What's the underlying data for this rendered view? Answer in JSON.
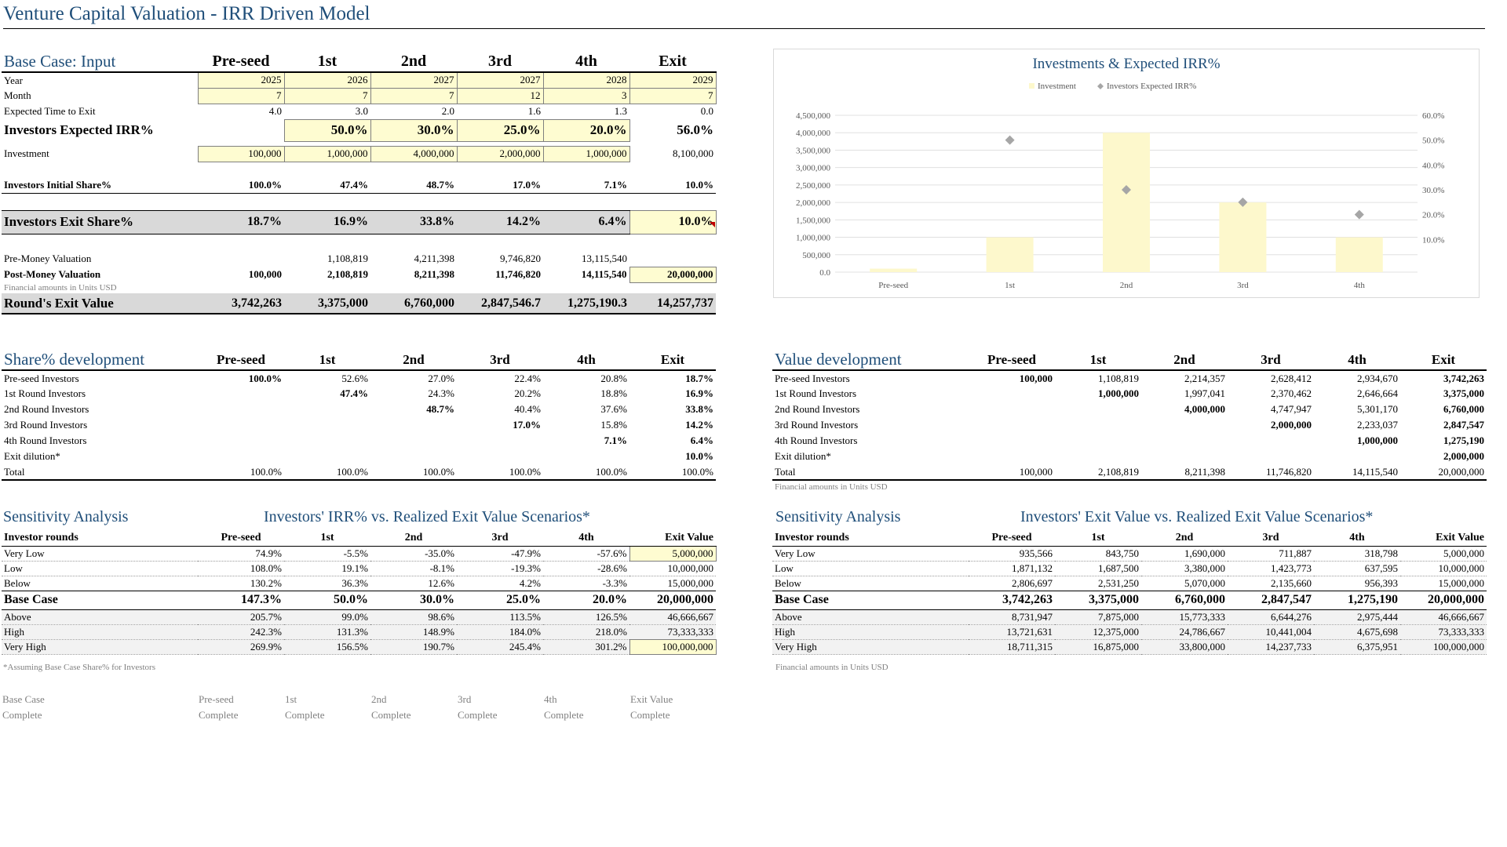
{
  "title": "Venture Capital Valuation - IRR Driven Model",
  "input": {
    "heading": "Base Case: Input",
    "columns": [
      "Pre-seed",
      "1st",
      "2nd",
      "3rd",
      "4th",
      "Exit"
    ],
    "year": {
      "label": "Year",
      "values": [
        "2025",
        "2026",
        "2027",
        "2027",
        "2028",
        "2029"
      ]
    },
    "month": {
      "label": "Month",
      "values": [
        "7",
        "7",
        "7",
        "12",
        "3",
        "7"
      ]
    },
    "time_to_exit": {
      "label": "Expected Time to Exit",
      "values": [
        "4.0",
        "3.0",
        "2.0",
        "1.6",
        "1.3",
        "0.0"
      ]
    },
    "irr": {
      "label": "Investors Expected IRR%",
      "values": [
        "",
        "50.0%",
        "30.0%",
        "25.0%",
        "20.0%",
        "56.0%"
      ]
    },
    "investment": {
      "label": "Investment",
      "values": [
        "100,000",
        "1,000,000",
        "4,000,000",
        "2,000,000",
        "1,000,000",
        "8,100,000"
      ]
    },
    "initial_share": {
      "label": "Investors Initial Share%",
      "values": [
        "100.0%",
        "47.4%",
        "48.7%",
        "17.0%",
        "7.1%",
        "10.0%"
      ]
    },
    "exit_share": {
      "label": "Investors Exit Share%",
      "values": [
        "18.7%",
        "16.9%",
        "33.8%",
        "14.2%",
        "6.4%",
        "10.0%"
      ]
    },
    "pre_money": {
      "label": "Pre-Money Valuation",
      "values": [
        "",
        "1,108,819",
        "4,211,398",
        "9,746,820",
        "13,115,540",
        ""
      ]
    },
    "post_money": {
      "label": "Post-Money Valuation",
      "values": [
        "100,000",
        "2,108,819",
        "8,211,398",
        "11,746,820",
        "14,115,540",
        "20,000,000"
      ]
    },
    "note": "Financial amounts in Units USD",
    "round_exit": {
      "label": "Round's Exit Value",
      "values": [
        "3,742,263",
        "3,375,000",
        "6,760,000",
        "2,847,546.7",
        "1,275,190.3",
        "14,257,737"
      ]
    }
  },
  "chart_data": {
    "type": "bar",
    "title": "Investments & Expected IRR%",
    "categories": [
      "Pre-seed",
      "1st",
      "2nd",
      "3rd",
      "4th"
    ],
    "series": [
      {
        "name": "Investment",
        "type": "bar",
        "axis": "left",
        "values": [
          100000,
          1000000,
          4000000,
          2000000,
          1000000
        ],
        "color": "#fdf8cc"
      },
      {
        "name": "Investors Expected IRR%",
        "type": "scatter",
        "axis": "right",
        "values": [
          null,
          50.0,
          30.0,
          25.0,
          20.0
        ],
        "color": "#a6a6a6"
      }
    ],
    "left_ticks": [
      "0.0",
      "500,000",
      "1,000,000",
      "1,500,000",
      "2,000,000",
      "2,500,000",
      "3,000,000",
      "3,500,000",
      "4,000,000",
      "4,500,000"
    ],
    "right_ticks": [
      "10.0%",
      "20.0%",
      "30.0%",
      "40.0%",
      "50.0%",
      "60.0%"
    ],
    "ylim_left": [
      0,
      4500000
    ],
    "ylim_right": [
      0,
      60
    ],
    "legend": "top",
    "grid": true
  },
  "share_dev": {
    "heading": "Share% development",
    "columns": [
      "Pre-seed",
      "1st",
      "2nd",
      "3rd",
      "4th",
      "Exit"
    ],
    "rows": [
      {
        "label": "Pre-seed Investors",
        "values": [
          "100.0%",
          "52.6%",
          "27.0%",
          "22.4%",
          "20.8%",
          "18.7%"
        ]
      },
      {
        "label": "1st Round Investors",
        "values": [
          "",
          "47.4%",
          "24.3%",
          "20.2%",
          "18.8%",
          "16.9%"
        ]
      },
      {
        "label": "2nd Round Investors",
        "values": [
          "",
          "",
          "48.7%",
          "40.4%",
          "37.6%",
          "33.8%"
        ]
      },
      {
        "label": "3rd Round Investors",
        "values": [
          "",
          "",
          "",
          "17.0%",
          "15.8%",
          "14.2%"
        ]
      },
      {
        "label": "4th Round Investors",
        "values": [
          "",
          "",
          "",
          "",
          "7.1%",
          "6.4%"
        ]
      },
      {
        "label": "Exit dilution*",
        "values": [
          "",
          "",
          "",
          "",
          "",
          "10.0%"
        ]
      }
    ],
    "total": {
      "label": "Total",
      "values": [
        "100.0%",
        "100.0%",
        "100.0%",
        "100.0%",
        "100.0%",
        "100.0%"
      ]
    }
  },
  "value_dev": {
    "heading": "Value development",
    "columns": [
      "Pre-seed",
      "1st",
      "2nd",
      "3rd",
      "4th",
      "Exit"
    ],
    "rows": [
      {
        "label": "Pre-seed Investors",
        "values": [
          "100,000",
          "1,108,819",
          "2,214,357",
          "2,628,412",
          "2,934,670",
          "3,742,263"
        ]
      },
      {
        "label": "1st Round Investors",
        "values": [
          "",
          "1,000,000",
          "1,997,041",
          "2,370,462",
          "2,646,664",
          "3,375,000"
        ]
      },
      {
        "label": "2nd Round Investors",
        "values": [
          "",
          "",
          "4,000,000",
          "4,747,947",
          "5,301,170",
          "6,760,000"
        ]
      },
      {
        "label": "3rd Round Investors",
        "values": [
          "",
          "",
          "",
          "2,000,000",
          "2,233,037",
          "2,847,547"
        ]
      },
      {
        "label": "4th Round Investors",
        "values": [
          "",
          "",
          "",
          "",
          "1,000,000",
          "1,275,190"
        ]
      },
      {
        "label": "Exit dilution*",
        "values": [
          "",
          "",
          "",
          "",
          "",
          "2,000,000"
        ]
      }
    ],
    "total": {
      "label": "Total",
      "values": [
        "100,000",
        "2,108,819",
        "8,211,398",
        "11,746,820",
        "14,115,540",
        "20,000,000"
      ]
    },
    "note": "Financial amounts in Units USD"
  },
  "sens_irr": {
    "heading": "Sensitivity Analysis",
    "subheading": "Investors' IRR% vs. Realized Exit Value Scenarios*",
    "columns": [
      "Investor rounds",
      "Pre-seed",
      "1st",
      "2nd",
      "3rd",
      "4th",
      "Exit Value"
    ],
    "rows": [
      {
        "label": "Very Low",
        "values": [
          "74.9%",
          "-5.5%",
          "-35.0%",
          "-47.9%",
          "-57.6%",
          "5,000,000"
        ]
      },
      {
        "label": "Low",
        "values": [
          "108.0%",
          "19.1%",
          "-8.1%",
          "-19.3%",
          "-28.6%",
          "10,000,000"
        ]
      },
      {
        "label": "Below",
        "values": [
          "130.2%",
          "36.3%",
          "12.6%",
          "4.2%",
          "-3.3%",
          "15,000,000"
        ]
      },
      {
        "label": "Base Case",
        "values": [
          "147.3%",
          "50.0%",
          "30.0%",
          "25.0%",
          "20.0%",
          "20,000,000"
        ]
      },
      {
        "label": "Above",
        "values": [
          "205.7%",
          "99.0%",
          "98.6%",
          "113.5%",
          "126.5%",
          "46,666,667"
        ]
      },
      {
        "label": "High",
        "values": [
          "242.3%",
          "131.3%",
          "148.9%",
          "184.0%",
          "218.0%",
          "73,333,333"
        ]
      },
      {
        "label": "Very High",
        "values": [
          "269.9%",
          "156.5%",
          "190.7%",
          "245.4%",
          "301.2%",
          "100,000,000"
        ]
      }
    ],
    "note": "*Assuming Base Case Share% for Investors"
  },
  "sens_value": {
    "heading": "Sensitivity Analysis",
    "subheading": "Investors' Exit Value vs. Realized Exit Value Scenarios*",
    "columns": [
      "Investor rounds",
      "Pre-seed",
      "1st",
      "2nd",
      "3rd",
      "4th",
      "Exit Value"
    ],
    "rows": [
      {
        "label": "Very Low",
        "values": [
          "935,566",
          "843,750",
          "1,690,000",
          "711,887",
          "318,798",
          "5,000,000"
        ]
      },
      {
        "label": "Low",
        "values": [
          "1,871,132",
          "1,687,500",
          "3,380,000",
          "1,423,773",
          "637,595",
          "10,000,000"
        ]
      },
      {
        "label": "Below",
        "values": [
          "2,806,697",
          "2,531,250",
          "5,070,000",
          "2,135,660",
          "956,393",
          "15,000,000"
        ]
      },
      {
        "label": "Base Case",
        "values": [
          "3,742,263",
          "3,375,000",
          "6,760,000",
          "2,847,547",
          "1,275,190",
          "20,000,000"
        ]
      },
      {
        "label": "Above",
        "values": [
          "8,731,947",
          "7,875,000",
          "15,773,333",
          "6,644,276",
          "2,975,444",
          "46,666,667"
        ]
      },
      {
        "label": "High",
        "values": [
          "13,721,631",
          "12,375,000",
          "24,786,667",
          "10,441,004",
          "4,675,698",
          "73,333,333"
        ]
      },
      {
        "label": "Very High",
        "values": [
          "18,711,315",
          "16,875,000",
          "33,800,000",
          "14,237,733",
          "6,375,951",
          "100,000,000"
        ]
      }
    ],
    "note": "Financial amounts in Units USD"
  },
  "status": {
    "headers": [
      "Base Case",
      "Pre-seed",
      "1st",
      "2nd",
      "3rd",
      "4th",
      "Exit Value"
    ],
    "values": [
      "Complete",
      "Complete",
      "Complete",
      "Complete",
      "Complete",
      "Complete",
      "Complete"
    ]
  }
}
